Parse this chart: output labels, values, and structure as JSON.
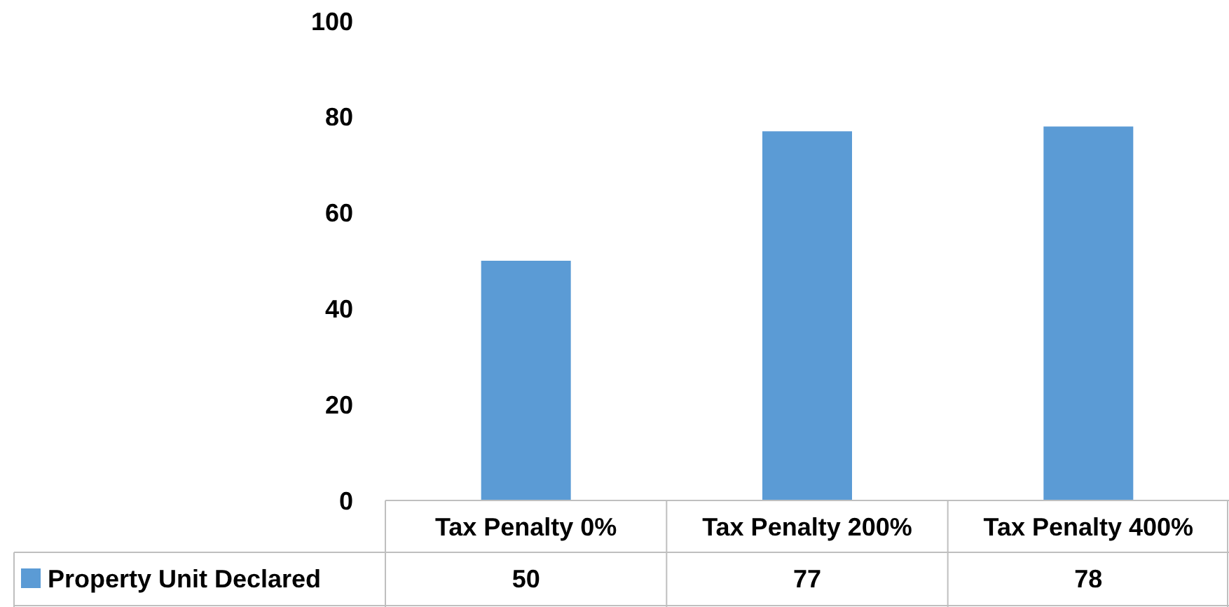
{
  "chart_data": {
    "type": "bar",
    "categories": [
      "Tax Penalty 0%",
      "Tax Penalty 200%",
      "Tax Penalty 400%"
    ],
    "series": [
      {
        "name": "Property Unit Declared",
        "color": "#5b9bd5",
        "values": [
          50,
          77,
          78
        ]
      }
    ],
    "ylim": [
      0,
      100
    ],
    "yticks": [
      0,
      20,
      40,
      60,
      80,
      100
    ],
    "data_labels": true,
    "legend": "bottom left"
  }
}
